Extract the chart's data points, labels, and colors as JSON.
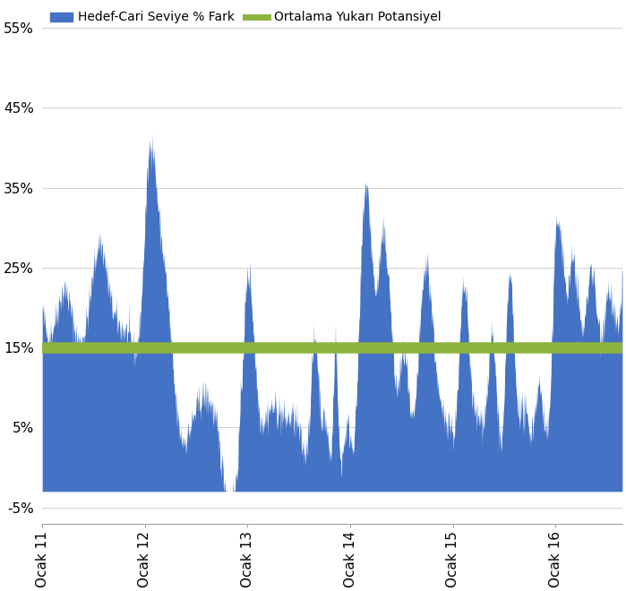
{
  "title": "",
  "ylabel": "",
  "xlabel": "",
  "ylim": [
    -0.07,
    0.58
  ],
  "yticks": [
    -0.05,
    0.05,
    0.15,
    0.25,
    0.35,
    0.45,
    0.55
  ],
  "ytick_labels": [
    "-5%",
    "5%",
    "15%",
    "25%",
    "35%",
    "45%",
    "55%"
  ],
  "xtick_labels": [
    "Ocak 11",
    "Ocak 12",
    "Ocak 13",
    "Ocak 14",
    "Ocak 15",
    "Ocak 16"
  ],
  "area_color": "#4472C4",
  "area_alpha": 1.0,
  "line_color": "#8DB43E",
  "line_value": 0.15,
  "line_width": 9,
  "legend_area_label": "Hedef-Cari Seviye % Fark",
  "legend_line_label": "Ortalama Yukarı Potansiyel",
  "background_color": "#FFFFFF",
  "grid_color": "#D0D0D0",
  "num_points": 1400,
  "xlim": [
    0,
    5.65
  ]
}
